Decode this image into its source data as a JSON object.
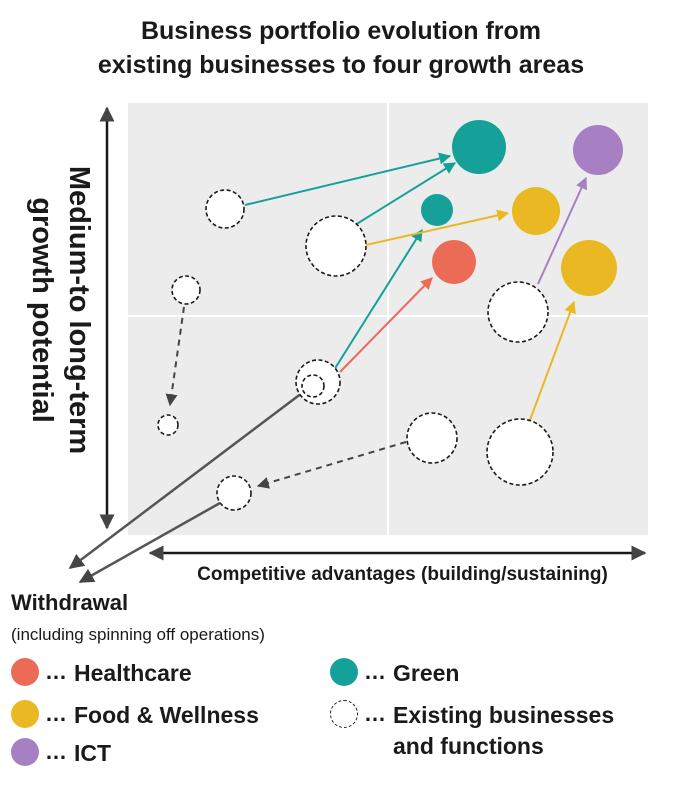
{
  "title": {
    "line1": "Business portfolio evolution from",
    "line2": "existing businesses to four growth areas"
  },
  "axes": {
    "y_label_line1": "Medium-to long-term",
    "y_label_line2": "growth potential",
    "x_label": "Competitive advantages (building/sustaining)"
  },
  "withdrawal": {
    "label": "Withdrawal",
    "sub": "(including spinning off operations)"
  },
  "legend": {
    "dots": "…",
    "healthcare": "Healthcare",
    "food": "Food & Wellness",
    "ict": "ICT",
    "green": "Green",
    "existing_line1": "Existing businesses",
    "existing_line2": "and functions"
  },
  "colors": {
    "healthcare": "#ec6b56",
    "food": "#e9b823",
    "ict": "#a680c2",
    "green": "#16a09a",
    "existing": "#ffffff",
    "plot_background": "#ececec",
    "arrow_dark": "#555555"
  }
}
